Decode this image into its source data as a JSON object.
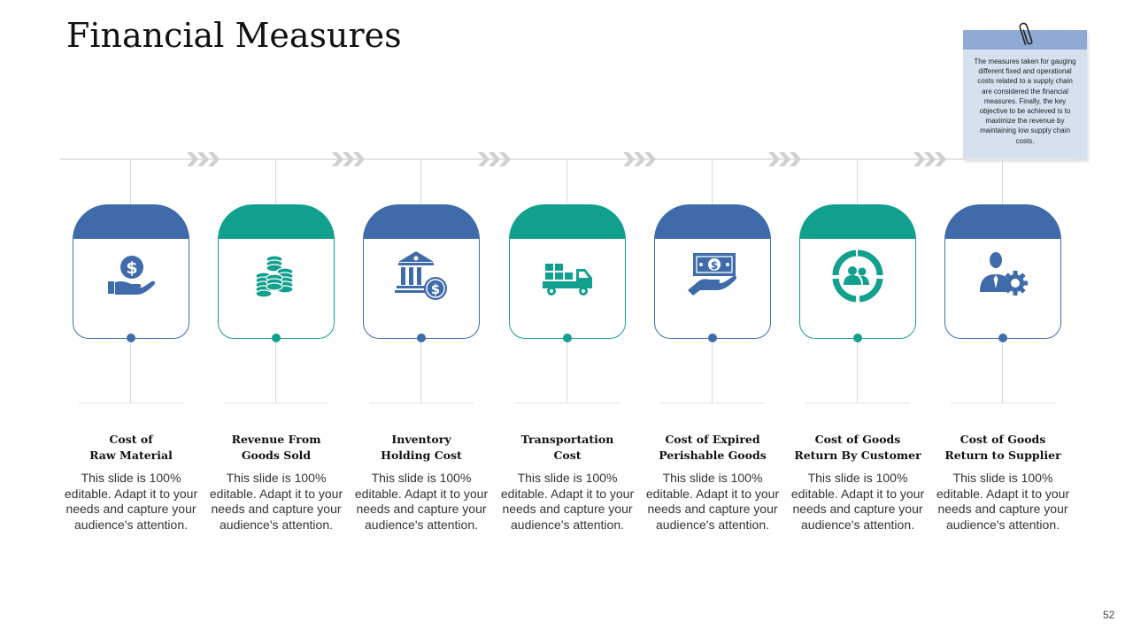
{
  "title": "Financial Measures",
  "note": {
    "text": "The measures taken for gauging different fixed and operational costs related to a supply chain are considered the financial measures. Finally, the key objective to be achieved is to maximize the revenue by maintaining low supply chain costs."
  },
  "colors": {
    "blue": "#3f6baa",
    "teal": "#12a08e",
    "note_bg": "#d6e0ef",
    "note_band": "#8faad4",
    "chevron": "#d0d0d0"
  },
  "items": [
    {
      "title_line1": "Cost of",
      "title_line2": "Raw Material",
      "description": "This slide is 100% editable. Adapt it to your needs and capture your audience's attention.",
      "icon": "money-hand-icon",
      "color": "blue"
    },
    {
      "title_line1": "Revenue From",
      "title_line2": "Goods Sold",
      "description": "This slide is 100% editable. Adapt it to your needs and capture your audience's attention.",
      "icon": "coin-stacks-icon",
      "color": "teal"
    },
    {
      "title_line1": "Inventory",
      "title_line2": "Holding Cost",
      "description": "This slide is 100% editable. Adapt it to your needs and capture your audience's attention.",
      "icon": "bank-dollar-icon",
      "color": "blue"
    },
    {
      "title_line1": "Transportation",
      "title_line2": "Cost",
      "description": "This slide is 100% editable. Adapt it to your needs and capture your audience's attention.",
      "icon": "delivery-truck-icon",
      "color": "teal"
    },
    {
      "title_line1": "Cost of Expired",
      "title_line2": "Perishable Goods",
      "description": "This slide is 100% editable. Adapt it to your needs and capture your audience's attention.",
      "icon": "cash-hand-icon",
      "color": "blue"
    },
    {
      "title_line1": "Cost of Goods",
      "title_line2": "Return By Customer",
      "description": "This slide is 100% editable. Adapt it to your needs and capture your audience's attention.",
      "icon": "customer-return-icon",
      "color": "teal"
    },
    {
      "title_line1": "Cost of Goods",
      "title_line2": "Return to Supplier",
      "description": "This slide is 100% editable. Adapt it to your needs and capture your audience's attention.",
      "icon": "supplier-gear-icon",
      "color": "blue"
    }
  ],
  "page_number": "52"
}
